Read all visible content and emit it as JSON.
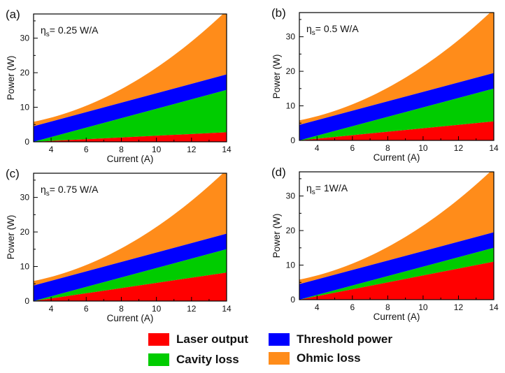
{
  "colors": {
    "laser": "#ff0000",
    "cavity": "#00cc00",
    "threshold": "#0000ff",
    "ohmic": "#ff8c1a"
  },
  "legend": {
    "laser": "Laser output",
    "cavity": "Cavity loss",
    "threshold": "Threshold power",
    "ohmic": "Ohmic loss"
  },
  "chart_data": [
    {
      "type": "area",
      "panel": "(a)",
      "annotation_eta": "η",
      "annotation_sub": "s",
      "annotation_value": "= 0.25 W/A",
      "xlabel": "Current (A)",
      "ylabel": "Power (W)",
      "xlim": [
        3,
        14
      ],
      "ylim": [
        0,
        37
      ],
      "xticks": [
        "4",
        "6",
        "8",
        "10",
        "12",
        "14"
      ],
      "yticks": [
        "0",
        "10",
        "20",
        "30"
      ],
      "x": [
        3,
        14
      ],
      "series": [
        {
          "name": "Laser output",
          "y": [
            0,
            2.75
          ]
        },
        {
          "name": "Cavity loss",
          "y": [
            0,
            15
          ]
        },
        {
          "name": "Threshold power",
          "y": [
            4.5,
            19.5
          ]
        },
        {
          "name": "Ohmic loss",
          "y": [
            5.8,
            38
          ]
        }
      ]
    },
    {
      "type": "area",
      "panel": "(b)",
      "annotation_eta": "η",
      "annotation_sub": "s",
      "annotation_value": "= 0.5 W/A",
      "xlabel": "Current (A)",
      "ylabel": "Power (W)",
      "xlim": [
        3,
        14
      ],
      "ylim": [
        0,
        37
      ],
      "xticks": [
        "4",
        "6",
        "8",
        "10",
        "12",
        "14"
      ],
      "yticks": [
        "0",
        "10",
        "20",
        "30"
      ],
      "x": [
        3,
        14
      ],
      "series": [
        {
          "name": "Laser output",
          "y": [
            0,
            5.5
          ]
        },
        {
          "name": "Cavity loss",
          "y": [
            0,
            15
          ]
        },
        {
          "name": "Threshold power",
          "y": [
            4.5,
            19.5
          ]
        },
        {
          "name": "Ohmic loss",
          "y": [
            5.8,
            38
          ]
        }
      ]
    },
    {
      "type": "area",
      "panel": "(c)",
      "annotation_eta": "η",
      "annotation_sub": "s",
      "annotation_value": "= 0.75 W/A",
      "xlabel": "Current (A)",
      "ylabel": "Power (W)",
      "xlim": [
        3,
        14
      ],
      "ylim": [
        0,
        37
      ],
      "xticks": [
        "4",
        "6",
        "8",
        "10",
        "12",
        "14"
      ],
      "yticks": [
        "0",
        "10",
        "20",
        "30"
      ],
      "x": [
        3,
        14
      ],
      "series": [
        {
          "name": "Laser output",
          "y": [
            0,
            8.25
          ]
        },
        {
          "name": "Cavity loss",
          "y": [
            0,
            15
          ]
        },
        {
          "name": "Threshold power",
          "y": [
            4.5,
            19.5
          ]
        },
        {
          "name": "Ohmic loss",
          "y": [
            5.8,
            38
          ]
        }
      ]
    },
    {
      "type": "area",
      "panel": "(d)",
      "annotation_eta": "η",
      "annotation_sub": "s",
      "annotation_value": "= 1W/A",
      "xlabel": "Current (A)",
      "ylabel": "Power (W)",
      "xlim": [
        3,
        14
      ],
      "ylim": [
        0,
        37
      ],
      "xticks": [
        "4",
        "6",
        "8",
        "10",
        "12",
        "14"
      ],
      "yticks": [
        "0",
        "10",
        "20",
        "30"
      ],
      "x": [
        3,
        14
      ],
      "series": [
        {
          "name": "Laser output",
          "y": [
            0,
            11
          ]
        },
        {
          "name": "Cavity loss",
          "y": [
            0,
            15
          ]
        },
        {
          "name": "Threshold power",
          "y": [
            4.5,
            19.5
          ]
        },
        {
          "name": "Ohmic loss",
          "y": [
            5.8,
            38
          ]
        }
      ]
    }
  ]
}
